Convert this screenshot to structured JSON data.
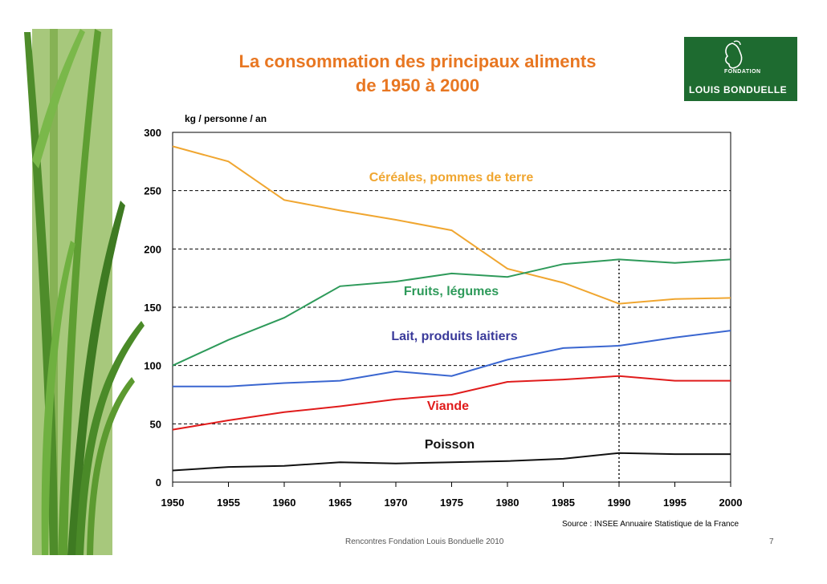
{
  "slide": {
    "title_line1": "La consommation des principaux aliments",
    "title_line2": "de 1950 à 2000",
    "source": "Source : INSEE Annuaire Statistique de la France",
    "footer": "Rencontres Fondation Louis Bonduelle 2010",
    "page_number": "7"
  },
  "logo": {
    "line1": "FONDATION",
    "line2": "LOUIS BONDUELLE"
  },
  "colors": {
    "title": "#E87722",
    "cereales": "#F0A630",
    "fruits": "#2E9A5A",
    "lait": "#3A66D0",
    "viande": "#E01B1B",
    "poisson": "#111111",
    "logo_bg": "#1E6B30"
  },
  "chart_data": {
    "type": "line",
    "ylabel": "kg / personne / an",
    "xlabel": "",
    "ylim": [
      0,
      300
    ],
    "yticks": [
      0,
      50,
      100,
      150,
      200,
      250,
      300
    ],
    "x": [
      1950,
      1955,
      1960,
      1965,
      1970,
      1975,
      1980,
      1985,
      1990,
      1995,
      2000
    ],
    "grid": "horizontal dashed",
    "reference_line_x": 1990,
    "series": [
      {
        "name": "Céréales, pommes de terre",
        "color": "#F0A630",
        "label_color": "#F0A630",
        "values": [
          288,
          275,
          242,
          233,
          225,
          216,
          183,
          171,
          153,
          157,
          158
        ]
      },
      {
        "name": "Fruits, légumes",
        "color": "#2E9A5A",
        "label_color": "#2E9A5A",
        "values": [
          100,
          122,
          141,
          168,
          172,
          179,
          176,
          187,
          191,
          188,
          191
        ]
      },
      {
        "name": "Lait, produits laitiers",
        "color": "#3A66D0",
        "label_color": "#3A3A9A",
        "values": [
          82,
          82,
          85,
          87,
          95,
          91,
          105,
          115,
          117,
          124,
          130
        ]
      },
      {
        "name": "Viande",
        "color": "#E01B1B",
        "label_color": "#E01B1B",
        "values": [
          45,
          53,
          60,
          65,
          71,
          75,
          86,
          88,
          91,
          87,
          87
        ]
      },
      {
        "name": "Poisson",
        "color": "#111111",
        "label_color": "#111111",
        "values": [
          10,
          13,
          14,
          17,
          16,
          17,
          18,
          20,
          25,
          24,
          24
        ]
      }
    ]
  }
}
